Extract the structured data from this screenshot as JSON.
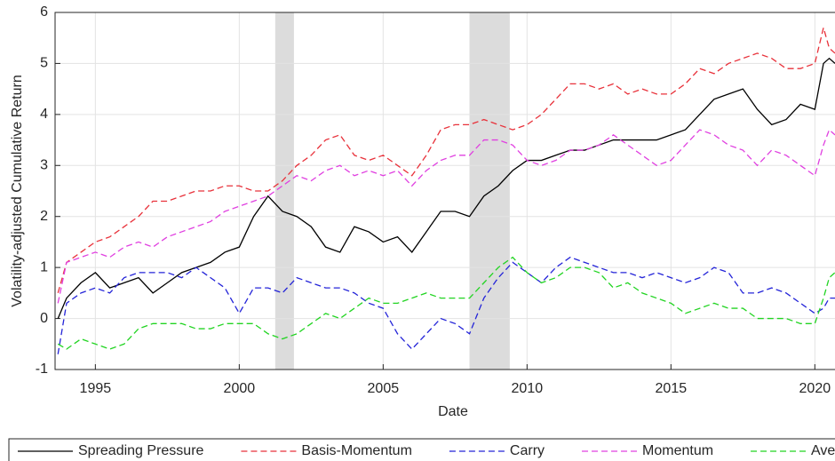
{
  "chart_data": {
    "type": "line",
    "xlabel": "Date",
    "ylabel": "Volatility-adjusted Cumulative Return",
    "xlim": [
      1993.6,
      2020.7
    ],
    "ylim": [
      -1,
      6
    ],
    "xticks": [
      1995,
      2000,
      2005,
      2010,
      2015,
      2020
    ],
    "yticks": [
      -1,
      0,
      1,
      2,
      3,
      4,
      5,
      6
    ],
    "grid": true,
    "legend": "bottom",
    "shaded_regions": [
      [
        2001.25,
        2001.9
      ],
      [
        2008,
        2009.4
      ]
    ],
    "x": [
      1993.7,
      1994,
      1994.5,
      1995,
      1995.5,
      1996,
      1996.5,
      1997,
      1997.5,
      1998,
      1998.5,
      1999,
      1999.5,
      2000,
      2000.5,
      2001,
      2001.5,
      2002,
      2002.5,
      2003,
      2003.5,
      2004,
      2004.5,
      2005,
      2005.5,
      2006,
      2006.5,
      2007,
      2007.5,
      2008,
      2008.5,
      2009,
      2009.5,
      2010,
      2010.5,
      2011,
      2011.5,
      2012,
      2012.5,
      2013,
      2013.5,
      2014,
      2014.5,
      2015,
      2015.5,
      2016,
      2016.5,
      2017,
      2017.5,
      2018,
      2018.5,
      2019,
      2019.5,
      2020,
      2020.3,
      2020.5,
      2020.7
    ],
    "series": [
      {
        "name": "Spreading Pressure",
        "color": "#000000",
        "style": "solid",
        "values": [
          0,
          0.4,
          0.7,
          0.9,
          0.6,
          0.7,
          0.8,
          0.5,
          0.7,
          0.9,
          1.0,
          1.1,
          1.3,
          1.4,
          2.0,
          2.4,
          2.1,
          2.0,
          1.8,
          1.4,
          1.3,
          1.8,
          1.7,
          1.5,
          1.6,
          1.3,
          1.7,
          2.1,
          2.1,
          2.0,
          2.4,
          2.6,
          2.9,
          3.1,
          3.1,
          3.2,
          3.3,
          3.3,
          3.4,
          3.5,
          3.5,
          3.5,
          3.5,
          3.6,
          3.7,
          4.0,
          4.3,
          4.4,
          4.5,
          4.1,
          3.8,
          3.9,
          4.2,
          4.1,
          5.0,
          5.1,
          5.0
        ]
      },
      {
        "name": "Basis-Momentum",
        "color": "#e8313a",
        "style": "dashed",
        "values": [
          0.5,
          1.1,
          1.3,
          1.5,
          1.6,
          1.8,
          2.0,
          2.3,
          2.3,
          2.4,
          2.5,
          2.5,
          2.6,
          2.6,
          2.5,
          2.5,
          2.7,
          3.0,
          3.2,
          3.5,
          3.6,
          3.2,
          3.1,
          3.2,
          3.0,
          2.8,
          3.2,
          3.7,
          3.8,
          3.8,
          3.9,
          3.8,
          3.7,
          3.8,
          4.0,
          4.3,
          4.6,
          4.6,
          4.5,
          4.6,
          4.4,
          4.5,
          4.4,
          4.4,
          4.6,
          4.9,
          4.8,
          5.0,
          5.1,
          5.2,
          5.1,
          4.9,
          4.9,
          5.0,
          5.7,
          5.3,
          5.2
        ]
      },
      {
        "name": "Carry",
        "color": "#2424d8",
        "style": "dashed",
        "values": [
          -0.7,
          0.3,
          0.5,
          0.6,
          0.5,
          0.8,
          0.9,
          0.9,
          0.9,
          0.8,
          1.0,
          0.8,
          0.6,
          0.1,
          0.6,
          0.6,
          0.5,
          0.8,
          0.7,
          0.6,
          0.6,
          0.5,
          0.3,
          0.2,
          -0.3,
          -0.6,
          -0.3,
          0.0,
          -0.1,
          -0.3,
          0.4,
          0.8,
          1.1,
          0.9,
          0.7,
          1.0,
          1.2,
          1.1,
          1.0,
          0.9,
          0.9,
          0.8,
          0.9,
          0.8,
          0.7,
          0.8,
          1.0,
          0.9,
          0.5,
          0.5,
          0.6,
          0.5,
          0.3,
          0.1,
          0.2,
          0.4,
          0.4
        ]
      },
      {
        "name": "Momentum",
        "color": "#e040e0",
        "style": "dashed",
        "values": [
          0.3,
          1.1,
          1.2,
          1.3,
          1.2,
          1.4,
          1.5,
          1.4,
          1.6,
          1.7,
          1.8,
          1.9,
          2.1,
          2.2,
          2.3,
          2.4,
          2.6,
          2.8,
          2.7,
          2.9,
          3.0,
          2.8,
          2.9,
          2.8,
          2.9,
          2.6,
          2.9,
          3.1,
          3.2,
          3.2,
          3.5,
          3.5,
          3.4,
          3.1,
          3.0,
          3.1,
          3.3,
          3.3,
          3.4,
          3.6,
          3.4,
          3.2,
          3.0,
          3.1,
          3.4,
          3.7,
          3.6,
          3.4,
          3.3,
          3.0,
          3.3,
          3.2,
          3.0,
          2.8,
          3.4,
          3.7,
          3.6
        ]
      },
      {
        "name": "Average",
        "color": "#22d422",
        "style": "dashed",
        "values": [
          -0.5,
          -0.6,
          -0.4,
          -0.5,
          -0.6,
          -0.5,
          -0.2,
          -0.1,
          -0.1,
          -0.1,
          -0.2,
          -0.2,
          -0.1,
          -0.1,
          -0.1,
          -0.3,
          -0.4,
          -0.3,
          -0.1,
          0.1,
          0.0,
          0.2,
          0.4,
          0.3,
          0.3,
          0.4,
          0.5,
          0.4,
          0.4,
          0.4,
          0.7,
          1.0,
          1.2,
          0.9,
          0.7,
          0.8,
          1.0,
          1.0,
          0.9,
          0.6,
          0.7,
          0.5,
          0.4,
          0.3,
          0.1,
          0.2,
          0.3,
          0.2,
          0.2,
          0.0,
          0.0,
          0.0,
          -0.1,
          -0.1,
          0.4,
          0.8,
          0.9
        ]
      }
    ]
  }
}
